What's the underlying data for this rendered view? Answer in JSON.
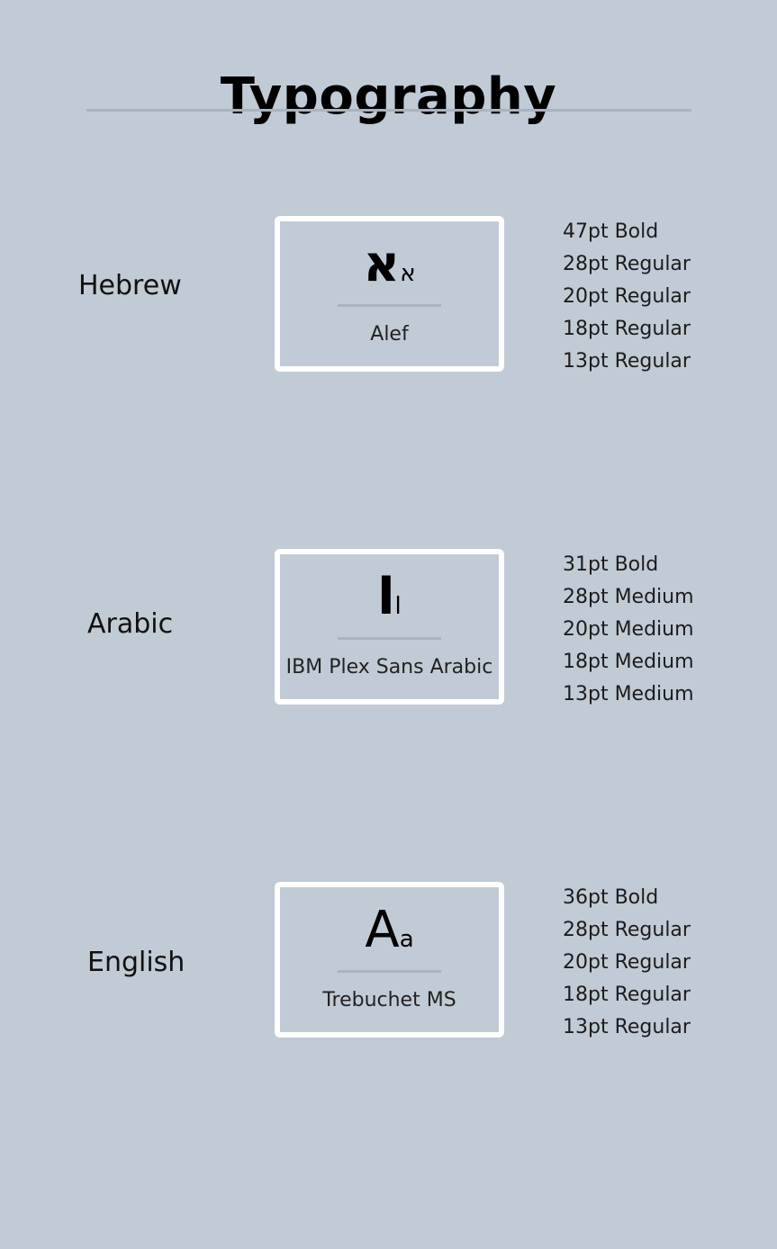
{
  "title": "Typography",
  "sections": [
    {
      "language": "Hebrew",
      "glyph_large": "א",
      "glyph_small": "א",
      "font_name": "Alef",
      "specs": [
        "47pt Bold",
        "28pt Regular",
        "20pt Regular",
        "18pt Regular",
        "13pt Regular"
      ]
    },
    {
      "language": "Arabic",
      "glyph_large": "ا",
      "glyph_small": "ا",
      "font_name": "IBM Plex Sans Arabic",
      "specs": [
        "31pt Bold",
        "28pt Medium",
        "20pt Medium",
        "18pt Medium",
        "13pt Medium"
      ]
    },
    {
      "language": "English",
      "glyph_large": "A",
      "glyph_small": "a",
      "font_name": "Trebuchet MS",
      "specs": [
        "36pt Bold",
        "28pt Regular",
        "20pt Regular",
        "18pt Regular",
        "13pt Regular"
      ]
    }
  ],
  "colors": {
    "background": "#c1cbd5",
    "rule": "#a9b4bf",
    "card_border": "#ffffff",
    "text": "#000000"
  }
}
